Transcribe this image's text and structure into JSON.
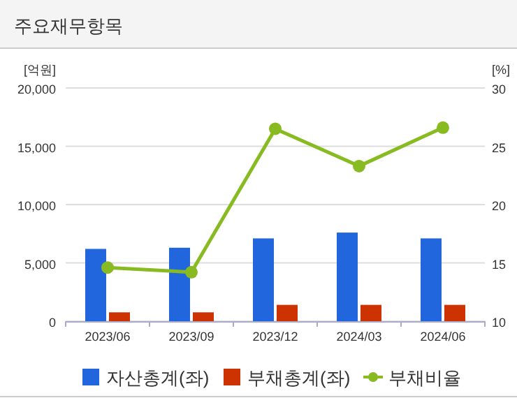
{
  "chart_data": {
    "type": "bar",
    "title": "주요재무항목",
    "categories": [
      "2023/06",
      "2023/09",
      "2023/12",
      "2024/03",
      "2024/06"
    ],
    "series": [
      {
        "name": "자산총계(좌)",
        "color": "#2266dd",
        "values": [
          6200,
          6300,
          7100,
          7600,
          7100
        ]
      },
      {
        "name": "부채총계(좌)",
        "color": "#cc3300",
        "values": [
          760,
          760,
          1400,
          1400,
          1400
        ]
      },
      {
        "name": "부채비율",
        "type": "line",
        "axis": "y2",
        "color": "#88bb22",
        "values": [
          14.6,
          14.2,
          26.5,
          23.3,
          26.6
        ]
      }
    ],
    "ylabel": "[억원]",
    "y2label": "[%]",
    "ylim": [
      0,
      20000
    ],
    "yticks": [
      {
        "value": 0,
        "label": "0"
      },
      {
        "value": 5000,
        "label": "5,000"
      },
      {
        "value": 10000,
        "label": "10,000"
      },
      {
        "value": 15000,
        "label": "15,000"
      },
      {
        "value": 20000,
        "label": "20,000"
      }
    ],
    "y2lim": [
      10,
      30
    ],
    "y2ticks": [
      10,
      15,
      20,
      25,
      30
    ],
    "grid": "y",
    "legend": "bottom",
    "marker": "circle"
  }
}
